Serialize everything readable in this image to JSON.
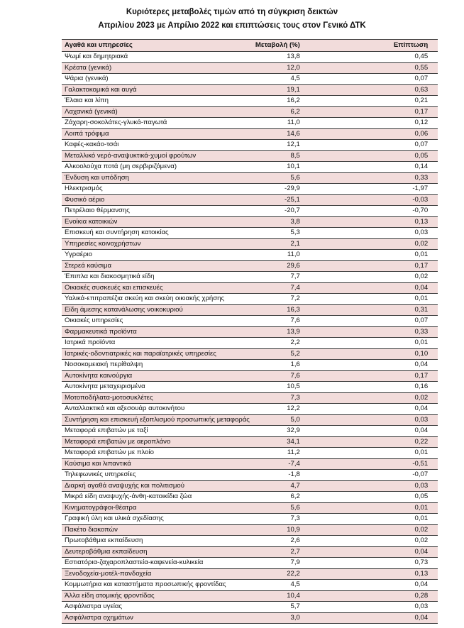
{
  "title_line1": "Κυριότερες μεταβολές τιμών από τη σύγκριση δεικτών",
  "title_line2": "Απριλίου 2023 με Απρίλιο 2022 και επιπτώσεις τους στον Γενικό ΔΤΚ",
  "columns": [
    "Αγαθά και υπηρεσίες",
    "Μεταβολή (%)",
    "Επίπτωση"
  ],
  "rows": [
    [
      "Ψωμί και δημητριακά",
      "13,8",
      "0,45"
    ],
    [
      "Κρέατα (γενικά)",
      "12,0",
      "0,55"
    ],
    [
      "Ψάρια (γενικά)",
      "4,5",
      "0,07"
    ],
    [
      "Γαλακτοκομικά και αυγά",
      "19,1",
      "0,63"
    ],
    [
      "Έλαια και λίπη",
      "16,2",
      "0,21"
    ],
    [
      "Λαχανικά (γενικά)",
      "6,2",
      "0,17"
    ],
    [
      "Ζάχαρη-σοκολάτες-γλυκά-παγωτά",
      "11,0",
      "0,12"
    ],
    [
      "Λοιπά τρόφιμα",
      "14,6",
      "0,06"
    ],
    [
      "Καφές-κακάο-τσάι",
      "12,1",
      "0,07"
    ],
    [
      "Μεταλλικό νερό-αναψυκτικά-χυμοί φρούτων",
      "8,5",
      "0,05"
    ],
    [
      "Αλκοολούχα ποτά (μη σερβιριζόμενα)",
      "10,1",
      "0,14"
    ],
    [
      "Ένδυση και υπόδηση",
      "5,6",
      "0,33"
    ],
    [
      "Ηλεκτρισμός",
      "-29,9",
      "-1,97"
    ],
    [
      "Φυσικό αέριο",
      "-25,1",
      "-0,03"
    ],
    [
      "Πετρέλαιο θέρμανσης",
      "-20,7",
      "-0,70"
    ],
    [
      "Ενοίκια κατοικιών",
      "3,8",
      "0,13"
    ],
    [
      "Επισκευή και συντήρηση κατοικίας",
      "5,3",
      "0,03"
    ],
    [
      "Υπηρεσίες κοινοχρήστων",
      "2,1",
      "0,02"
    ],
    [
      "Υγραέριο",
      "11,0",
      "0,01"
    ],
    [
      "Στερεά καύσιμα",
      "29,6",
      "0,17"
    ],
    [
      "Έπιπλα και διακοσμητικά είδη",
      "7,7",
      "0,02"
    ],
    [
      "Οικιακές συσκευές και επισκευές",
      "7,4",
      "0,04"
    ],
    [
      "Υαλικά-επιτραπέζια σκεύη και σκεύη οικιακής χρήσης",
      "7,2",
      "0,01"
    ],
    [
      "Είδη άμεσης κατανάλωσης νοικοκυριού",
      "16,3",
      "0,31"
    ],
    [
      "Οικιακές υπηρεσίες",
      "7,6",
      "0,07"
    ],
    [
      "Φαρμακευτικά προϊόντα",
      "13,9",
      "0,33"
    ],
    [
      "Ιατρικά προϊόντα",
      "2,2",
      "0,01"
    ],
    [
      "Ιατρικές-οδοντιατρικές και παραϊατρικές υπηρεσίες",
      "5,2",
      "0,10"
    ],
    [
      "Νοσοκομειακή περίθαλψη",
      "1,6",
      "0,04"
    ],
    [
      "Αυτοκίνητα καινούργια",
      "7,6",
      "0,17"
    ],
    [
      "Αυτοκίνητα μεταχειρισμένα",
      "10,5",
      "0,16"
    ],
    [
      "Μοτοποδήλατα-μοτοσυκλέτες",
      "7,3",
      "0,02"
    ],
    [
      "Ανταλλακτικά και αξεσουάρ αυτοκινήτου",
      "12,2",
      "0,04"
    ],
    [
      "Συντήρηση και επισκευή εξοπλισμού προσωπικής μεταφοράς",
      "5,0",
      "0,03"
    ],
    [
      "Μεταφορά επιβατών με ταξί",
      "32,9",
      "0,04"
    ],
    [
      "Μεταφορά επιβατών με αεροπλάνο",
      "34,1",
      "0,22"
    ],
    [
      "Μεταφορά επιβατών με πλοίο",
      "11,2",
      "0,01"
    ],
    [
      "Καύσιμα και λιπαντικά",
      "-7,4",
      "-0,51"
    ],
    [
      "Τηλεφωνικές υπηρεσίες",
      "-1,8",
      "-0,07"
    ],
    [
      "Διαρκή αγαθά αναψυχής και πολιτισμού",
      "4,7",
      "0,03"
    ],
    [
      "Μικρά είδη αναψυχής-άνθη-κατοικίδια ζώα",
      "6,2",
      "0,05"
    ],
    [
      "Κινηματογράφοι-θέατρα",
      "5,6",
      "0,01"
    ],
    [
      "Γραφική ύλη και υλικά σχεδίασης",
      "7,3",
      "0,01"
    ],
    [
      "Πακέτο διακοπών",
      "10,9",
      "0,02"
    ],
    [
      "Πρωτοβάθμια εκπαίδευση",
      "2,6",
      "0,02"
    ],
    [
      "Δευτεροβάθμια εκπαίδευση",
      "2,7",
      "0,04"
    ],
    [
      "Εστιατόρια-ζαχαροπλαστεία-καφενεία-κυλικεία",
      "7,9",
      "0,73"
    ],
    [
      "Ξενοδοχεία-μοτέλ-πανδοχεία",
      "22,2",
      "0,13"
    ],
    [
      "Κομμωτήρια και καταστήματα προσωπικής φροντίδας",
      "4,5",
      "0,04"
    ],
    [
      "Άλλα είδη ατομικής φροντίδας",
      "10,4",
      "0,28"
    ],
    [
      "Ασφάλιστρα υγείας",
      "5,7",
      "0,03"
    ],
    [
      "Ασφάλιστρα οχημάτων",
      "3,0",
      "0,04"
    ]
  ],
  "colors": {
    "row_shade": "#f2dcdb",
    "rule": "#333333"
  }
}
